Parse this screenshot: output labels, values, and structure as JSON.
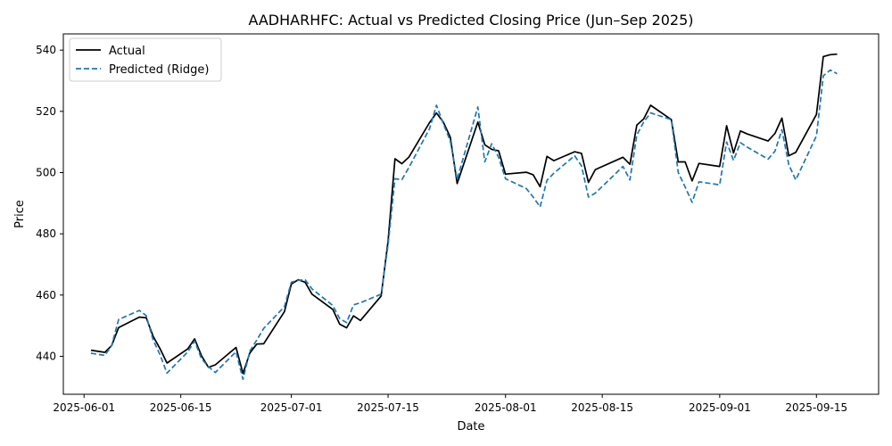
{
  "chart_data": {
    "type": "line",
    "title": "AADHARHFC: Actual vs Predicted Closing Price (Jun–Sep 2025)",
    "xlabel": "Date",
    "ylabel": "Price",
    "ylim": [
      427.6,
      545.3
    ],
    "xlim": [
      "2025-05-29",
      "2025-09-24"
    ],
    "y_ticks": [
      440,
      460,
      480,
      500,
      520,
      540
    ],
    "x_ticks": [
      "2025-06-01",
      "2025-06-15",
      "2025-07-01",
      "2025-07-15",
      "2025-08-01",
      "2025-08-15",
      "2025-09-01",
      "2025-09-15"
    ],
    "grid": false,
    "legend": "top-left",
    "series": [
      {
        "name": "Actual",
        "color": "#000000",
        "style": "solid",
        "points": [
          [
            "2025-06-02",
            442.0
          ],
          [
            "2025-06-04",
            441.3
          ],
          [
            "2025-06-05",
            443.5
          ],
          [
            "2025-06-06",
            449.4
          ],
          [
            "2025-06-09",
            452.8
          ],
          [
            "2025-06-10",
            452.6
          ],
          [
            "2025-06-11",
            446.5
          ],
          [
            "2025-06-12",
            442.5
          ],
          [
            "2025-06-13",
            437.8
          ],
          [
            "2025-06-16",
            442.4
          ],
          [
            "2025-06-17",
            445.7
          ],
          [
            "2025-06-18",
            440.2
          ],
          [
            "2025-06-19",
            436.4
          ],
          [
            "2025-06-20",
            437.2
          ],
          [
            "2025-06-23",
            442.9
          ],
          [
            "2025-06-24",
            434.4
          ],
          [
            "2025-06-25",
            441.1
          ],
          [
            "2025-06-26",
            444.0
          ],
          [
            "2025-06-27",
            444.1
          ],
          [
            "2025-06-30",
            454.6
          ],
          [
            "2025-07-01",
            463.6
          ],
          [
            "2025-07-02",
            465.0
          ],
          [
            "2025-07-03",
            464.2
          ],
          [
            "2025-07-04",
            460.3
          ],
          [
            "2025-07-07",
            455.3
          ],
          [
            "2025-07-08",
            450.5
          ],
          [
            "2025-07-09",
            449.3
          ],
          [
            "2025-07-10",
            453.2
          ],
          [
            "2025-07-11",
            451.7
          ],
          [
            "2025-07-14",
            459.7
          ],
          [
            "2025-07-15",
            477.8
          ],
          [
            "2025-07-16",
            504.5
          ],
          [
            "2025-07-17",
            502.9
          ],
          [
            "2025-07-18",
            505.0
          ],
          [
            "2025-07-21",
            516.3
          ],
          [
            "2025-07-22",
            519.5
          ],
          [
            "2025-07-23",
            516.5
          ],
          [
            "2025-07-24",
            511.6
          ],
          [
            "2025-07-25",
            496.4
          ],
          [
            "2025-07-28",
            516.5
          ],
          [
            "2025-07-29",
            509.1
          ],
          [
            "2025-07-30",
            507.6
          ],
          [
            "2025-07-31",
            507.1
          ],
          [
            "2025-08-01",
            499.5
          ],
          [
            "2025-08-04",
            500.1
          ],
          [
            "2025-08-05",
            499.3
          ],
          [
            "2025-08-06",
            495.4
          ],
          [
            "2025-08-07",
            505.3
          ],
          [
            "2025-08-08",
            503.9
          ],
          [
            "2025-08-11",
            506.8
          ],
          [
            "2025-08-12",
            506.3
          ],
          [
            "2025-08-13",
            496.8
          ],
          [
            "2025-08-14",
            501.0
          ],
          [
            "2025-08-18",
            505.0
          ],
          [
            "2025-08-19",
            502.7
          ],
          [
            "2025-08-20",
            515.5
          ],
          [
            "2025-08-21",
            517.5
          ],
          [
            "2025-08-22",
            522.0
          ],
          [
            "2025-08-25",
            517.3
          ],
          [
            "2025-08-26",
            503.5
          ],
          [
            "2025-08-27",
            503.5
          ],
          [
            "2025-08-28",
            497.3
          ],
          [
            "2025-08-29",
            503.0
          ],
          [
            "2025-09-01",
            502.0
          ],
          [
            "2025-09-02",
            515.3
          ],
          [
            "2025-09-03",
            506.4
          ],
          [
            "2025-09-04",
            513.6
          ],
          [
            "2025-09-05",
            512.6
          ],
          [
            "2025-09-08",
            510.3
          ],
          [
            "2025-09-09",
            512.8
          ],
          [
            "2025-09-10",
            517.8
          ],
          [
            "2025-09-11",
            505.5
          ],
          [
            "2025-09-12",
            506.6
          ],
          [
            "2025-09-15",
            519.0
          ],
          [
            "2025-09-16",
            537.9
          ],
          [
            "2025-09-17",
            538.5
          ],
          [
            "2025-09-18",
            538.7
          ]
        ]
      },
      {
        "name": "Predicted (Ridge)",
        "color": "#1f77b4",
        "style": "dashed",
        "points": [
          [
            "2025-06-02",
            441.0
          ],
          [
            "2025-06-04",
            440.3
          ],
          [
            "2025-06-05",
            443.5
          ],
          [
            "2025-06-06",
            452.0
          ],
          [
            "2025-06-09",
            455.0
          ],
          [
            "2025-06-10",
            453.3
          ],
          [
            "2025-06-11",
            445.3
          ],
          [
            "2025-06-12",
            440.5
          ],
          [
            "2025-06-13",
            434.5
          ],
          [
            "2025-06-16",
            441.4
          ],
          [
            "2025-06-17",
            445.0
          ],
          [
            "2025-06-18",
            439.2
          ],
          [
            "2025-06-19",
            436.6
          ],
          [
            "2025-06-20",
            434.7
          ],
          [
            "2025-06-23",
            441.5
          ],
          [
            "2025-06-24",
            432.5
          ],
          [
            "2025-06-25",
            441.7
          ],
          [
            "2025-06-26",
            445.3
          ],
          [
            "2025-06-27",
            449.1
          ],
          [
            "2025-06-30",
            456.2
          ],
          [
            "2025-07-01",
            464.2
          ],
          [
            "2025-07-02",
            464.8
          ],
          [
            "2025-07-03",
            465.0
          ],
          [
            "2025-07-04",
            462.0
          ],
          [
            "2025-07-07",
            456.6
          ],
          [
            "2025-07-08",
            452.3
          ],
          [
            "2025-07-09",
            451.0
          ],
          [
            "2025-07-10",
            456.8
          ],
          [
            "2025-07-11",
            457.5
          ],
          [
            "2025-07-14",
            460.3
          ],
          [
            "2025-07-15",
            476.5
          ],
          [
            "2025-07-16",
            498.0
          ],
          [
            "2025-07-17",
            497.7
          ],
          [
            "2025-07-18",
            501.6
          ],
          [
            "2025-07-21",
            514.3
          ],
          [
            "2025-07-22",
            522.0
          ],
          [
            "2025-07-23",
            516.0
          ],
          [
            "2025-07-24",
            510.3
          ],
          [
            "2025-07-25",
            497.8
          ],
          [
            "2025-07-28",
            521.4
          ],
          [
            "2025-07-29",
            503.5
          ],
          [
            "2025-07-30",
            509.4
          ],
          [
            "2025-07-31",
            505.0
          ],
          [
            "2025-08-01",
            498.0
          ],
          [
            "2025-08-04",
            494.8
          ],
          [
            "2025-08-05",
            492.0
          ],
          [
            "2025-08-06",
            488.8
          ],
          [
            "2025-08-07",
            497.5
          ],
          [
            "2025-08-08",
            499.8
          ],
          [
            "2025-08-11",
            505.5
          ],
          [
            "2025-08-12",
            502.2
          ],
          [
            "2025-08-13",
            492.0
          ],
          [
            "2025-08-14",
            493.3
          ],
          [
            "2025-08-18",
            502.0
          ],
          [
            "2025-08-19",
            497.6
          ],
          [
            "2025-08-20",
            512.3
          ],
          [
            "2025-08-21",
            516.5
          ],
          [
            "2025-08-22",
            519.5
          ],
          [
            "2025-08-25",
            517.3
          ],
          [
            "2025-08-26",
            500.0
          ],
          [
            "2025-08-27",
            495.3
          ],
          [
            "2025-08-28",
            490.3
          ],
          [
            "2025-08-29",
            497.0
          ],
          [
            "2025-09-01",
            496.0
          ],
          [
            "2025-09-02",
            510.0
          ],
          [
            "2025-09-03",
            504.0
          ],
          [
            "2025-09-04",
            509.8
          ],
          [
            "2025-09-05",
            508.3
          ],
          [
            "2025-09-08",
            504.4
          ],
          [
            "2025-09-09",
            507.0
          ],
          [
            "2025-09-10",
            514.0
          ],
          [
            "2025-09-11",
            502.6
          ],
          [
            "2025-09-12",
            497.6
          ],
          [
            "2025-09-15",
            512.0
          ],
          [
            "2025-09-16",
            531.6
          ],
          [
            "2025-09-17",
            533.5
          ],
          [
            "2025-09-18",
            532.3
          ]
        ]
      }
    ]
  }
}
